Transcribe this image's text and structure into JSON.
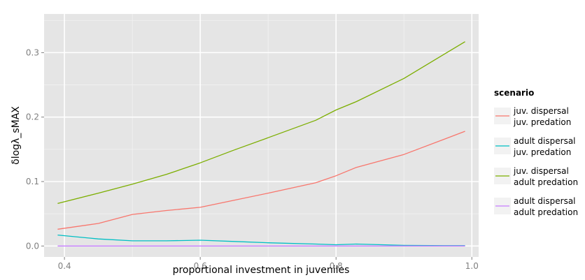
{
  "chart_data": {
    "type": "line",
    "xlabel": "proportional investment in juveniles",
    "ylabel": "δlogλ_sMAX",
    "xlim": [
      0.37,
      1.01
    ],
    "ylim": [
      -0.017,
      0.36
    ],
    "x_ticks": [
      0.4,
      0.6,
      0.8,
      1.0
    ],
    "x_tick_labels": [
      "0.4",
      "0.6",
      "0.8",
      "1.0"
    ],
    "y_ticks": [
      0.0,
      0.1,
      0.2,
      0.3
    ],
    "y_tick_labels": [
      "0.0",
      "0.1",
      "0.2",
      "0.3"
    ],
    "grid": true,
    "legend": {
      "title": "scenario",
      "position": "right"
    },
    "series": [
      {
        "name": [
          "juv. dispersal",
          "juv. predation"
        ],
        "color": "#F8766D",
        "x": [
          0.39,
          0.45,
          0.5,
          0.55,
          0.6,
          0.65,
          0.7,
          0.77,
          0.8,
          0.83,
          0.9,
          0.96,
          0.99
        ],
        "values": [
          0.026,
          0.035,
          0.049,
          0.055,
          0.06,
          0.071,
          0.082,
          0.098,
          0.109,
          0.122,
          0.142,
          0.166,
          0.178
        ]
      },
      {
        "name": [
          "adult dispersal",
          "juv. predation"
        ],
        "color": "#00BFC4",
        "x": [
          0.39,
          0.45,
          0.5,
          0.55,
          0.6,
          0.65,
          0.7,
          0.77,
          0.8,
          0.83,
          0.9,
          0.96,
          0.99
        ],
        "values": [
          0.017,
          0.011,
          0.008,
          0.008,
          0.009,
          0.007,
          0.005,
          0.003,
          0.002,
          0.003,
          0.001,
          0.0005,
          0.0005
        ]
      },
      {
        "name": [
          "juv. dispersal",
          "adult predation"
        ],
        "color": "#7CAE00",
        "x": [
          0.39,
          0.45,
          0.5,
          0.55,
          0.6,
          0.65,
          0.7,
          0.77,
          0.8,
          0.83,
          0.9,
          0.96,
          0.99
        ],
        "values": [
          0.066,
          0.082,
          0.096,
          0.111,
          0.129,
          0.149,
          0.168,
          0.195,
          0.211,
          0.224,
          0.26,
          0.298,
          0.317
        ]
      },
      {
        "name": [
          "adult dispersal",
          "adult predation"
        ],
        "color": "#C77CFF",
        "x": [
          0.39,
          0.45,
          0.5,
          0.55,
          0.6,
          0.65,
          0.7,
          0.77,
          0.8,
          0.83,
          0.9,
          0.96,
          0.99
        ],
        "values": [
          0,
          0,
          0,
          0,
          0,
          0,
          0,
          0,
          0,
          0,
          0,
          0,
          0
        ]
      }
    ]
  },
  "style": {
    "panel_background": "#E5E5E5",
    "grid_major": "#FFFFFF",
    "grid_minor": "#F2F2F2"
  }
}
